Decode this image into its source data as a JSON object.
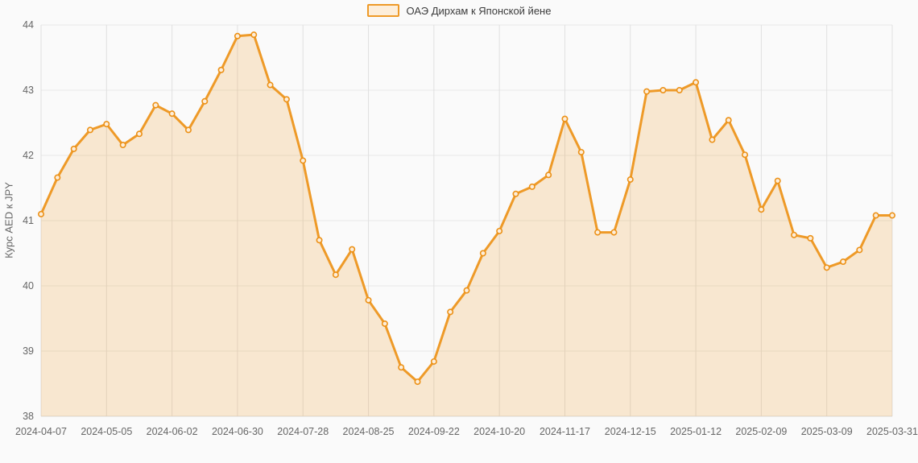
{
  "legend": {
    "label": "ОАЭ Дирхам к Японской йене"
  },
  "y_axis": {
    "title": "Курс AED к JPY"
  },
  "chart_data": {
    "type": "area",
    "title": "ОАЭ Дирхам к Японской йене",
    "xlabel": "",
    "ylabel": "Курс AED к JPY",
    "ylim": [
      38,
      44
    ],
    "y_ticks": [
      38,
      39,
      40,
      41,
      42,
      43,
      44
    ],
    "grid": true,
    "legend_position": "top-center",
    "x_tick_labels": [
      "2024-04-07",
      "2024-05-05",
      "2024-06-02",
      "2024-06-30",
      "2024-07-28",
      "2024-08-25",
      "2024-09-22",
      "2024-10-20",
      "2024-11-17",
      "2024-12-15",
      "2025-01-12",
      "2025-02-09",
      "2025-03-09",
      "2025-03-31"
    ],
    "x_tick_indices": [
      0,
      4,
      8,
      12,
      16,
      20,
      24,
      28,
      32,
      36,
      40,
      44,
      48,
      52
    ],
    "series": [
      {
        "name": "ОАЭ Дирхам к Японской йене",
        "values": [
          41.1,
          41.66,
          42.1,
          42.39,
          42.48,
          42.16,
          42.33,
          42.77,
          42.64,
          42.39,
          42.83,
          43.31,
          43.83,
          43.85,
          43.08,
          42.86,
          41.92,
          40.7,
          40.17,
          40.56,
          39.78,
          39.42,
          38.75,
          38.53,
          38.84,
          39.6,
          39.93,
          40.5,
          40.84,
          41.41,
          41.52,
          41.7,
          42.56,
          42.05,
          40.82,
          40.82,
          41.63,
          42.98,
          43.0,
          43.0,
          43.12,
          42.24,
          42.54,
          42.01,
          41.17,
          41.61,
          40.78,
          40.73,
          40.28,
          40.37,
          40.55,
          41.08,
          41.08
        ]
      }
    ],
    "colors": {
      "line": "#ee9a28",
      "area_fill": "rgba(238,154,40,0.2)",
      "marker_stroke": "#ec9117",
      "marker_fill": "#fdeeda",
      "grid_h": "#e8e8e8",
      "grid_v": "#e0e0e0",
      "axis_line": "#d9d9d9",
      "tick_text": "#666666",
      "legend_text": "#3c3c3c",
      "background": "#fafafa"
    }
  }
}
